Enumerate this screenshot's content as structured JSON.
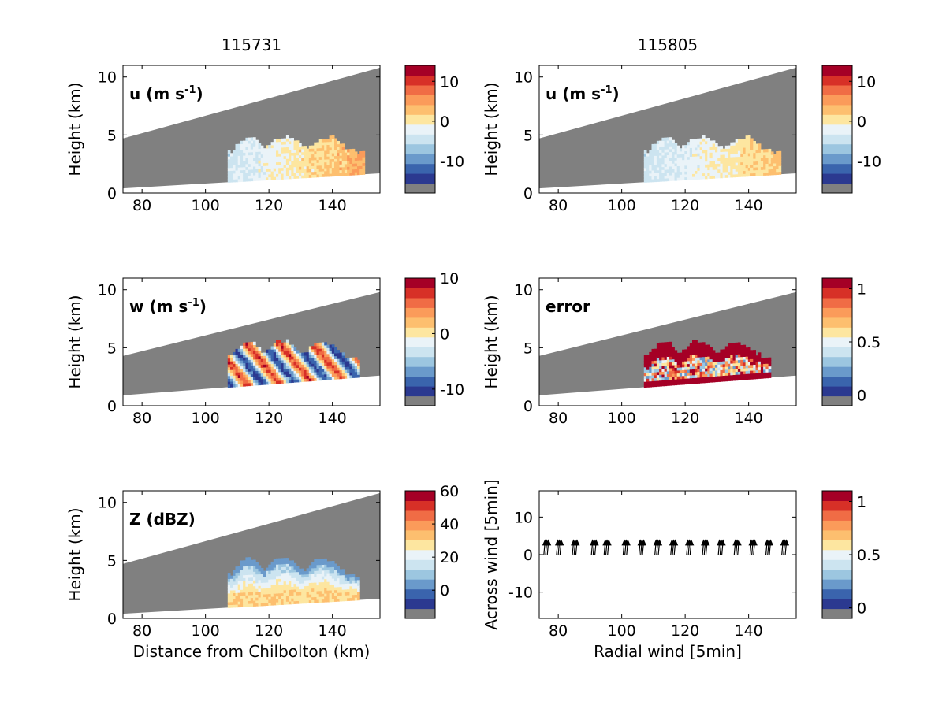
{
  "figure": {
    "column_titles": [
      "115731",
      "115805"
    ],
    "xlabel_bottom_left": "Distance from Chilbolton (km)",
    "ylabel_height": "Height (km)"
  },
  "colors": {
    "gray": "#808080",
    "palette": [
      "#2b3990",
      "#3a64ad",
      "#6a9acb",
      "#9cc6e0",
      "#cce4f0",
      "#eaf3f8",
      "#fde6a0",
      "#fdbf6f",
      "#fb9b5a",
      "#f06c45",
      "#d73027",
      "#a50026"
    ]
  },
  "chart_data": [
    {
      "id": "u1",
      "type": "heatmap",
      "column": 0,
      "row": 0,
      "title": "115731",
      "label": "u (m s",
      "label_sup": "-1",
      "label_end": ")",
      "ylabel": "Height (km)",
      "xlabel": "",
      "xlim": [
        74,
        155
      ],
      "ylim": [
        0,
        11
      ],
      "xticks": [
        "80",
        "100",
        "120",
        "140"
      ],
      "yticks": [
        "0",
        "5",
        "10"
      ],
      "colorbar": {
        "ticks": [
          "10",
          "0",
          "-10"
        ],
        "range": [
          -18,
          14
        ]
      },
      "beam_top": [
        [
          74,
          4.7
        ],
        [
          155,
          10.8
        ]
      ],
      "beam_bottom": [
        [
          74,
          0.4
        ],
        [
          155,
          1.7
        ]
      ],
      "echo": {
        "variable": "u",
        "range_km": [
          107,
          150
        ],
        "top_km": [
          3.3,
          4.8
        ],
        "value_range": [
          -6,
          6
        ]
      }
    },
    {
      "id": "u2",
      "type": "heatmap",
      "column": 1,
      "row": 0,
      "title": "115805",
      "label": "u (m s",
      "label_sup": "-1",
      "label_end": ")",
      "ylabel": "Height (km)",
      "xlabel": "",
      "xlim": [
        74,
        155
      ],
      "ylim": [
        0,
        11
      ],
      "xticks": [
        "80",
        "100",
        "120",
        "140"
      ],
      "yticks": [
        "0",
        "5",
        "10"
      ],
      "colorbar": {
        "ticks": [
          "10",
          "0",
          "-10"
        ],
        "range": [
          -18,
          14
        ]
      },
      "beam_top": [
        [
          74,
          4.7
        ],
        [
          155,
          10.8
        ]
      ],
      "beam_bottom": [
        [
          74,
          0.4
        ],
        [
          155,
          1.7
        ]
      ],
      "echo": {
        "variable": "u",
        "range_km": [
          107,
          150
        ],
        "top_km": [
          3.3,
          4.8
        ],
        "value_range": [
          -6,
          4
        ]
      }
    },
    {
      "id": "w",
      "type": "heatmap",
      "column": 0,
      "row": 1,
      "label": "w (m s",
      "label_sup": "-1",
      "label_end": ")",
      "ylabel": "Height (km)",
      "xlabel": "",
      "xlim": [
        74,
        155
      ],
      "ylim": [
        0,
        11
      ],
      "xticks": [
        "80",
        "100",
        "120",
        "140"
      ],
      "yticks": [
        "0",
        "5",
        "10"
      ],
      "colorbar": {
        "ticks": [
          "10",
          "0",
          "-10"
        ],
        "range": [
          -13,
          10
        ]
      },
      "beam_top": [
        [
          74,
          4.3
        ],
        [
          155,
          9.8
        ]
      ],
      "beam_bottom": [
        [
          74,
          0.9
        ],
        [
          155,
          2.6
        ]
      ],
      "echo": {
        "variable": "w",
        "range_km": [
          107,
          148
        ],
        "top_km": [
          4.0,
          5.5
        ],
        "value_range": [
          -12,
          9
        ]
      }
    },
    {
      "id": "err",
      "type": "heatmap",
      "column": 1,
      "row": 1,
      "label": "error",
      "label_sup": "",
      "label_end": "",
      "ylabel": "Height (km)",
      "xlabel": "",
      "xlim": [
        74,
        155
      ],
      "ylim": [
        0,
        11
      ],
      "xticks": [
        "80",
        "100",
        "120",
        "140"
      ],
      "yticks": [
        "0",
        "5",
        "10"
      ],
      "colorbar": {
        "ticks": [
          "1",
          "0.5",
          "0"
        ],
        "range": [
          -0.1,
          1.1
        ]
      },
      "beam_top": [
        [
          74,
          4.3
        ],
        [
          155,
          9.8
        ]
      ],
      "beam_bottom": [
        [
          74,
          0.9
        ],
        [
          155,
          2.6
        ]
      ],
      "echo": {
        "variable": "error",
        "range_km": [
          107,
          147
        ],
        "top_km": [
          4.0,
          5.5
        ],
        "value_range": [
          0.3,
          1.1
        ]
      }
    },
    {
      "id": "Z",
      "type": "heatmap",
      "column": 0,
      "row": 2,
      "label": "Z (dBZ)",
      "label_sup": "",
      "label_end": "",
      "ylabel": "Height (km)",
      "xlabel": "Distance from Chilbolton (km)",
      "xlim": [
        74,
        155
      ],
      "ylim": [
        0,
        11
      ],
      "xticks": [
        "80",
        "100",
        "120",
        "140"
      ],
      "yticks": [
        "0",
        "5",
        "10"
      ],
      "colorbar": {
        "ticks": [
          "60",
          "40",
          "20",
          "0"
        ],
        "range": [
          -17,
          60
        ]
      },
      "beam_top": [
        [
          74,
          4.7
        ],
        [
          155,
          10.8
        ]
      ],
      "beam_bottom": [
        [
          74,
          0.4
        ],
        [
          155,
          1.7
        ]
      ],
      "echo": {
        "variable": "Z",
        "range_km": [
          107,
          148
        ],
        "top_km": [
          3.5,
          5.2
        ],
        "value_range": [
          5,
          30
        ]
      }
    },
    {
      "id": "wind",
      "type": "scatter",
      "column": 1,
      "row": 2,
      "xlabel": "Radial wind [5min]",
      "ylabel": "Across wind [5min]",
      "xlim": [
        74,
        155
      ],
      "ylim": [
        -17,
        17
      ],
      "xticks": [
        "80",
        "100",
        "120",
        "140"
      ],
      "yticks": [
        "-10",
        "0",
        "10"
      ],
      "colorbar": {
        "ticks": [
          "1",
          "0.5",
          "0"
        ],
        "range": [
          -0.1,
          1.1
        ]
      },
      "arrows": {
        "x": [
          76,
          80,
          85,
          91,
          95,
          101,
          106,
          111,
          116,
          121,
          126,
          131,
          136,
          141,
          146,
          151
        ],
        "y": 0,
        "dy": 3.5
      }
    }
  ]
}
